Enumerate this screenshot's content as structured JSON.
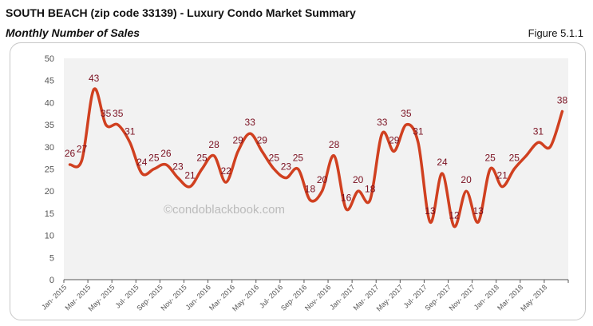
{
  "header": {
    "title": "SOUTH BEACH (zip code 33139) - Luxury Condo Market Summary",
    "subtitle": "Monthly Number of Sales",
    "figure": "Figure 5.1.1"
  },
  "watermark": "©condoblackbook.com",
  "chart_data": {
    "type": "line",
    "title": "Monthly Number of Sales",
    "xlabel": "",
    "ylabel": "",
    "ylim": [
      0,
      50
    ],
    "yticks": [
      0,
      5,
      10,
      15,
      20,
      25,
      30,
      35,
      40,
      45,
      50
    ],
    "grid": false,
    "color": "#d04020",
    "label_color": "#7a1020",
    "categories": [
      "Jan- 2015",
      "Feb- 2015",
      "Mar- 2015",
      "Apr- 2015",
      "May- 2015",
      "Jun- 2015",
      "Jul- 2015",
      "Aug- 2015",
      "Sep- 2015",
      "Oct- 2015",
      "Nov- 2015",
      "Dec- 2015",
      "Jan- 2016",
      "Feb- 2016",
      "Mar- 2016",
      "Apr- 2016",
      "May- 2016",
      "Jun- 2016",
      "Jul- 2016",
      "Aug- 2016",
      "Sep- 2016",
      "Oct- 2016",
      "Nov- 2016",
      "Dec- 2016",
      "Jan- 2017",
      "Feb- 2017",
      "Mar- 2017",
      "Apr- 2017",
      "May- 2017",
      "Jun- 2017",
      "Jul- 2017",
      "Aug- 2017",
      "Sep- 2017",
      "Oct- 2017",
      "Nov- 2017",
      "Dec- 2017",
      "Jan- 2018",
      "Feb- 2018",
      "Mar- 2018",
      "Apr- 2018",
      "May- 2018",
      "Jun- 2018"
    ],
    "xtick_labels": [
      "Jan- 2015",
      "Mar- 2015",
      "May- 2015",
      "Jul- 2015",
      "Sep- 2015",
      "Nov- 2015",
      "Jan- 2016",
      "Mar- 2016",
      "May- 2016",
      "Jul- 2016",
      "Sep- 2016",
      "Nov- 2016",
      "Jan- 2017",
      "Mar- 2017",
      "May- 2017",
      "Jul- 2017",
      "Sep- 2017",
      "Nov- 2017",
      "Jan- 2018",
      "Mar- 2018",
      "May- 2018"
    ],
    "values": [
      26,
      27,
      43,
      35,
      35,
      31,
      24,
      25,
      26,
      23,
      21,
      25,
      28,
      22,
      29,
      33,
      29,
      25,
      23,
      25,
      18,
      20,
      28,
      16,
      20,
      18,
      33,
      29,
      35,
      31,
      13,
      24,
      12,
      20,
      13,
      25,
      21,
      25,
      28,
      31,
      30,
      38
    ],
    "data_labels": [
      26,
      27,
      43,
      35,
      35,
      31,
      24,
      25,
      26,
      23,
      21,
      25,
      28,
      22,
      29,
      33,
      29,
      25,
      23,
      25,
      18,
      20,
      28,
      16,
      20,
      18,
      33,
      29,
      35,
      31,
      13,
      24,
      12,
      20,
      13,
      25,
      21,
      25,
      null,
      31,
      null,
      38
    ]
  }
}
